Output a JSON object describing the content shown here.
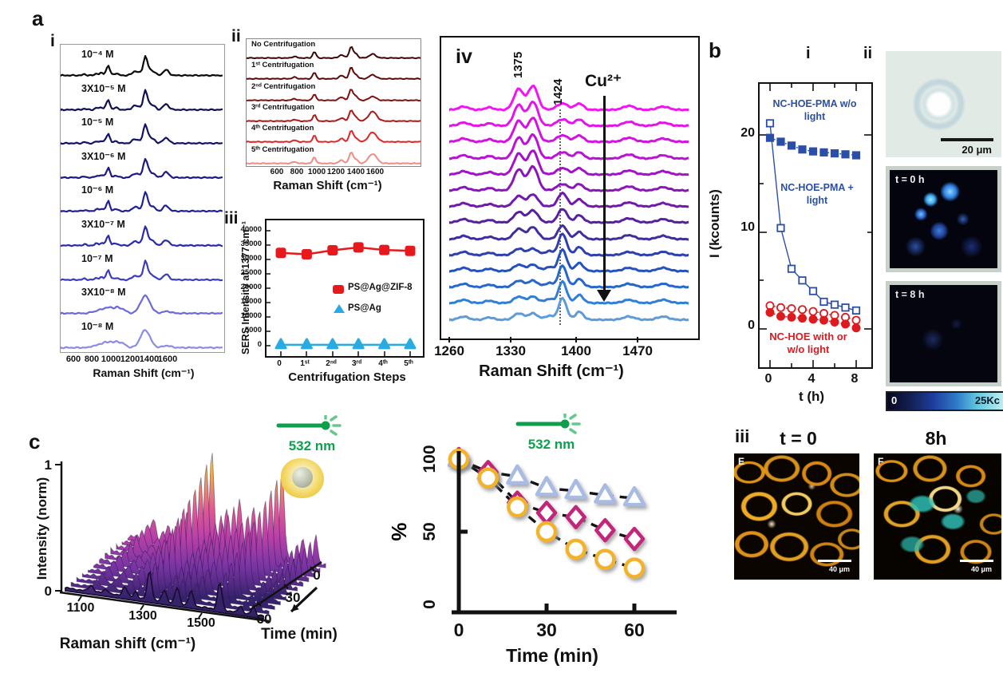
{
  "figure": {
    "panel_a": {
      "label": "a",
      "i": {
        "label": "i",
        "xlabel": "Raman Shift (cm⁻¹)",
        "x_ticks": [
          "600",
          "800",
          "1000",
          "1200",
          "1400",
          "1600"
        ],
        "spectra": [
          {
            "label": "10⁻⁴ M",
            "color": "#0B0B0D"
          },
          {
            "label": "3X10⁻⁵ M",
            "color": "#101050"
          },
          {
            "label": "10⁻⁵ M",
            "color": "#141467"
          },
          {
            "label": "3X10⁻⁶ M",
            "color": "#1A1A82"
          },
          {
            "label": "10⁻⁶ M",
            "color": "#202098"
          },
          {
            "label": "3X10⁻⁷ M",
            "color": "#2A2AAE"
          },
          {
            "label": "10⁻⁷ M",
            "color": "#3C3CC2"
          },
          {
            "label": "3X10⁻⁸ M",
            "color": "#6A6ADC"
          },
          {
            "label": "10⁻⁸ M",
            "color": "#8B8BE8"
          }
        ]
      },
      "ii": {
        "label": "ii",
        "xlabel": "Raman Shift (cm⁻¹)",
        "x_ticks": [
          "600",
          "800",
          "1000",
          "1200",
          "1400",
          "1600"
        ],
        "spectra": [
          {
            "label": "No Centrifugation",
            "color": "#3B0707"
          },
          {
            "label": "1ˢᵗ Centrifugation",
            "color": "#5C0A0A"
          },
          {
            "label": "2ⁿᵈ Centrifugation",
            "color": "#821010"
          },
          {
            "label": "3ʳᵈ Centrifugation",
            "color": "#B01818"
          },
          {
            "label": "4ᵗʰ Centrifugation",
            "color": "#E42424"
          },
          {
            "label": "5ᵗʰ Centrifugation",
            "color": "#F28B82"
          }
        ]
      },
      "iii": {
        "label": "iii",
        "ylabel": "SERS Intensity at 1377 cm⁻¹",
        "xlabel": "Centrifugation Steps",
        "y_ticks": [
          "40000",
          "35000",
          "30000",
          "25000",
          "20000",
          "15000",
          "10000",
          "5000",
          "0"
        ],
        "x_ticks": [
          "0",
          "1ˢᵗ",
          "2ⁿᵈ",
          "3ʳᵈ",
          "4ᵗʰ",
          "5ᵗʰ"
        ],
        "legend": [
          {
            "label": "PS@Ag@ZIF-8",
            "color": "#E8191C"
          },
          {
            "label": "PS@Ag",
            "color": "#29ABE2"
          }
        ]
      },
      "iv": {
        "label": "iv",
        "peak_label_1": "1375",
        "peak_label_2": "1424",
        "ion_annotation": "Cu²⁺",
        "xlabel": "Raman Shift (cm⁻¹)",
        "x_ticks": [
          "1260",
          "1330",
          "1400",
          "1470"
        ],
        "colors": [
          "#F513F5",
          "#E612EC",
          "#D411E2",
          "#BC11D6",
          "#A312C9",
          "#8A15BB",
          "#7119AD",
          "#58209F",
          "#402E9F",
          "#2E3FB0",
          "#2451C2",
          "#2566CF",
          "#2F7FD9",
          "#5E9BD8"
        ]
      }
    },
    "panel_b": {
      "label": "b",
      "sub_i": "i",
      "sub_ii": "ii",
      "i": {
        "ylabel": "I (kcounts)",
        "xlabel": "t (h)",
        "y_ticks": [
          "20",
          "10",
          "0"
        ],
        "x_ticks": [
          "0",
          "4",
          "8"
        ],
        "ann_wo_light": "NC-HOE-PMA w/o light",
        "ann_plus_light": "NC-HOE-PMA + light",
        "ann_red": "NC-HOE with or w/o light",
        "blue": "#2B4FA8",
        "red": "#DD1A1E"
      },
      "ii": {
        "scalebar": "20 μm",
        "label_t0": "t = 0 h",
        "label_t8": "t = 8 h",
        "colorbar_min": "0",
        "colorbar_max": "25Kc"
      },
      "iii": {
        "label": "iii",
        "title_t0": "t = 0",
        "title_8h": "8h",
        "letter_e": "E",
        "letter_f": "F",
        "scalebar_e": "40 μm",
        "scalebar_f": "40 μm"
      }
    },
    "panel_c": {
      "label": "c",
      "laser_label": "532 nm",
      "waterfall": {
        "ylabel": "Intensity (norm)",
        "y_tick_top": "1",
        "y_tick_bottom": "0",
        "xlabel": "Raman shift (cm⁻¹)",
        "x_ticks": [
          "1100",
          "1300",
          "1500"
        ],
        "t_label": "Time (min)",
        "t_ticks": [
          "0",
          "30",
          "60"
        ]
      },
      "decay": {
        "ylabel": "%",
        "y_ticks": [
          "100",
          "50",
          "0"
        ],
        "x_ticks": [
          "0",
          "30",
          "60"
        ],
        "xlabel": "Time (min)"
      }
    }
  },
  "chart_data": [
    {
      "id": "a_i_concentration_spectra",
      "type": "line",
      "xlabel": "Raman Shift (cm⁻¹)",
      "x_ticks": [
        600,
        800,
        1000,
        1200,
        1400,
        1600
      ],
      "series_labels": [
        "10⁻⁴ M",
        "3X10⁻⁵ M",
        "10⁻⁵ M",
        "3X10⁻⁶ M",
        "10⁻⁶ M",
        "3X10⁻⁷ M",
        "10⁻⁷ M",
        "3X10⁻⁸ M",
        "10⁻⁸ M"
      ],
      "main_peaks_cm1": [
        975,
        1250,
        1360,
        1420,
        1580
      ],
      "note": "Stacked offset SERS spectra; color black to light blue with decreasing concentration; lowest two concentrations show one broad band near 1375"
    },
    {
      "id": "a_ii_centrifugation_spectra",
      "type": "line",
      "xlabel": "Raman Shift (cm⁻¹)",
      "x_ticks": [
        600,
        800,
        1000,
        1200,
        1400,
        1600
      ],
      "series_labels": [
        "No Centrifugation",
        "1ˢᵗ Centrifugation",
        "2ⁿᵈ Centrifugation",
        "3ʳᵈ Centrifugation",
        "4ᵗʰ Centrifugation",
        "5ᵗʰ Centrifugation"
      ],
      "main_peaks_cm1": [
        975,
        1250,
        1345,
        1390,
        1570
      ],
      "note": "Stacked offset spectra, dark maroon to salmon; band near 1570 grows after 3rd centrifugation"
    },
    {
      "id": "a_iii_stability",
      "type": "scatter",
      "xlabel": "Centrifugation Steps",
      "ylabel": "SERS Intensity at 1377 cm⁻¹",
      "ylim": [
        0,
        40000
      ],
      "categories": [
        "0",
        "1ˢᵗ",
        "2ⁿᵈ",
        "3ʳᵈ",
        "4ᵗʰ",
        "5ᵗʰ"
      ],
      "series": [
        {
          "name": "PS@Ag@ZIF-8",
          "marker": "square",
          "color": "#E8191C",
          "values": [
            32300,
            31800,
            33200,
            34200,
            33300,
            33000
          ]
        },
        {
          "name": "PS@Ag",
          "marker": "triangle",
          "color": "#29ABE2",
          "values": [
            300,
            300,
            300,
            300,
            300,
            300
          ]
        }
      ]
    },
    {
      "id": "a_iv_cu_titration",
      "type": "line",
      "xlabel": "Raman Shift (cm⁻¹)",
      "xlim": [
        1260,
        1505
      ],
      "x_ticks": [
        1260,
        1330,
        1400,
        1470
      ],
      "n_spectra": 14,
      "peak_labels_cm1": [
        1375,
        1424
      ],
      "annotation": "Cu²⁺ increases top to bottom (arrow)",
      "note": "1375 doublet decreases and 1424 band grows with Cu²⁺; colors magenta (top) to light blue (bottom)"
    },
    {
      "id": "b_i_release",
      "type": "scatter",
      "xlabel": "t (h)",
      "ylabel": "I (kcounts)",
      "xlim": [
        0,
        8
      ],
      "ylim": [
        0,
        25
      ],
      "x": [
        0,
        1,
        2,
        3,
        4,
        5,
        6,
        7,
        8
      ],
      "series": [
        {
          "name": "NC-HOE-PMA w/o light",
          "marker": "filled-square",
          "line": "dotted",
          "color": "#2B4FA8",
          "values": [
            19.7,
            19.3,
            18.9,
            18.5,
            18.3,
            18.2,
            18.1,
            18.0,
            17.9
          ]
        },
        {
          "name": "NC-HOE-PMA + light",
          "marker": "open-square",
          "line": "solid",
          "color": "#2B4FA8",
          "values": [
            21.2,
            10.4,
            6.2,
            5.0,
            3.9,
            2.8,
            2.5,
            2.2,
            1.9
          ]
        },
        {
          "name": "NC-HOE w/o light",
          "marker": "open-circle",
          "line": "dotted",
          "color": "#DD1A1E",
          "values": [
            2.4,
            2.2,
            2.1,
            2.0,
            1.8,
            1.6,
            1.4,
            1.2,
            0.9
          ]
        },
        {
          "name": "NC-HOE with light",
          "marker": "filled-circle",
          "line": "dotted",
          "color": "#DD1A1E",
          "values": [
            1.7,
            1.3,
            1.2,
            1.1,
            1.0,
            0.9,
            0.7,
            0.5,
            0.1
          ]
        }
      ]
    },
    {
      "id": "c_waterfall",
      "type": "area",
      "xlabel": "Raman shift (cm⁻¹)",
      "x_ticks": [
        1100,
        1300,
        1500
      ],
      "ylabel": "Intensity (norm)",
      "ylim": [
        0,
        1
      ],
      "z_label": "Time (min)",
      "z_ticks": [
        0,
        30,
        60
      ],
      "note": "3D waterfall of normalized SERS spectra; intensity decays from t=0 (back, yellow peaks) to t=60 min (front, dark purple)"
    },
    {
      "id": "c_decay",
      "type": "scatter",
      "xlabel": "Time (min)",
      "ylabel": "%",
      "ylim": [
        0,
        100
      ],
      "x": [
        0,
        10,
        20,
        30,
        40,
        50,
        60
      ],
      "series": [
        {
          "name": "triangles",
          "marker": "triangle",
          "color": "#A8BBE3",
          "values": [
            100,
            91,
            88,
            80,
            78,
            75,
            73
          ]
        },
        {
          "name": "diamonds",
          "marker": "diamond",
          "color": "#C2267A",
          "values": [
            100,
            91,
            70,
            63,
            60,
            51,
            45
          ]
        },
        {
          "name": "circles",
          "marker": "circle",
          "color": "#F2B32A",
          "values": [
            100,
            87,
            67,
            50,
            38,
            31,
            25
          ]
        }
      ]
    }
  ]
}
